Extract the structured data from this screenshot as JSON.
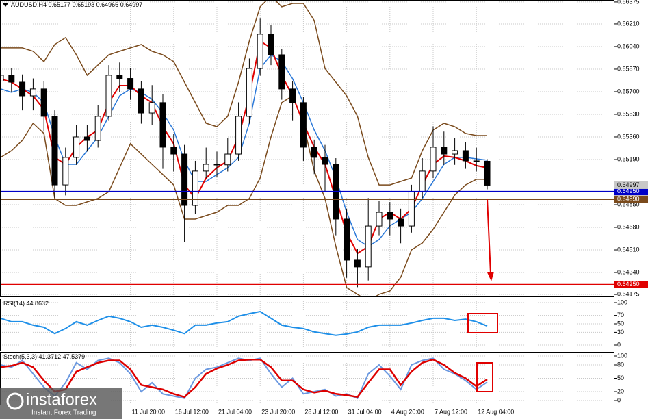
{
  "watermark": {
    "brand": "instaforex",
    "tagline": "Instant Forex Trading"
  },
  "chart_data": [
    {
      "type": "candlestick",
      "title": "AUDUSD,H4",
      "categories": [
        null,
        null,
        null,
        null,
        null,
        null,
        null,
        null,
        null,
        null,
        null,
        null,
        "11 Jul 20:00",
        null,
        null,
        null,
        "16 Jul 12:00",
        null,
        null,
        null,
        "21 Jul 04:00",
        null,
        null,
        null,
        "23 Jul 20:00",
        null,
        null,
        null,
        "28 Jul 12:00",
        null,
        null,
        null,
        "31 Jul 04:00",
        null,
        null,
        null,
        "4 Aug 20:00",
        null,
        null,
        null,
        "7 Aug 12:00",
        null,
        null,
        null,
        "12 Aug 04:00",
        null
      ],
      "open": [
        0.6578,
        0.65824,
        0.65772,
        0.65669,
        0.65721,
        0.65515,
        0.64999,
        0.65206,
        0.6536,
        0.65334,
        0.65515,
        0.65824,
        0.658,
        0.65721,
        0.6554,
        0.65618,
        0.65283,
        0.65231,
        0.64845,
        0.65103,
        0.65154,
        0.6515,
        0.65231,
        0.65515,
        0.65875,
        0.66133,
        0.65978,
        0.65721,
        0.65618,
        0.65283,
        0.65206,
        0.65154,
        0.64742,
        0.64433,
        0.64382,
        0.6469,
        0.64793,
        0.64742,
        0.6469,
        0.64948,
        0.65103,
        0.65283,
        0.65231,
        0.65257,
        0.6518,
        0.65177
      ],
      "high": [
        0.659,
        0.6588,
        0.6583,
        0.658,
        0.6578,
        0.6556,
        0.6528,
        0.6545,
        0.6545,
        0.656,
        0.659,
        0.6592,
        0.6588,
        0.6578,
        0.6575,
        0.6568,
        0.6538,
        0.653,
        0.6518,
        0.6528,
        0.6525,
        0.6535,
        0.6562,
        0.6595,
        0.6625,
        0.662,
        0.6602,
        0.6578,
        0.6566,
        0.6534,
        0.653,
        0.652,
        0.6482,
        0.6452,
        0.649,
        0.6488,
        0.6487,
        0.6482,
        0.65,
        0.652,
        0.6544,
        0.654,
        0.6535,
        0.6532,
        0.6528,
        0.65193
      ],
      "low": [
        0.657,
        0.657,
        0.6556,
        0.6556,
        0.654,
        0.649,
        0.6492,
        0.6515,
        0.6525,
        0.6528,
        0.6548,
        0.657,
        0.6564,
        0.6546,
        0.6545,
        0.6512,
        0.651,
        0.6457,
        0.6478,
        0.6505,
        0.6506,
        0.651,
        0.6518,
        0.6546,
        0.6582,
        0.659,
        0.6564,
        0.6548,
        0.6518,
        0.6508,
        0.6495,
        0.6462,
        0.643,
        0.6423,
        0.6428,
        0.6462,
        0.6462,
        0.6456,
        0.6464,
        0.649,
        0.6505,
        0.6515,
        0.6515,
        0.6512,
        0.651,
        0.64966
      ],
      "close": [
        0.65824,
        0.65772,
        0.65669,
        0.65721,
        0.65515,
        0.64999,
        0.65206,
        0.6536,
        0.65334,
        0.65515,
        0.65824,
        0.658,
        0.65721,
        0.6554,
        0.65618,
        0.65283,
        0.65231,
        0.64845,
        0.65103,
        0.65154,
        0.6515,
        0.65231,
        0.65515,
        0.65875,
        0.66133,
        0.65978,
        0.65721,
        0.65618,
        0.65283,
        0.65206,
        0.65154,
        0.64742,
        0.64433,
        0.64382,
        0.6469,
        0.64793,
        0.64742,
        0.6469,
        0.64948,
        0.65103,
        0.65283,
        0.65231,
        0.65257,
        0.6518,
        0.65177,
        0.64997
      ],
      "candle_color": "#000000",
      "overlays": [
        {
          "color": "#7a4a1c",
          "values": [
            0.6603,
            0.6603,
            0.6603,
            0.66004,
            0.65927,
            0.66055,
            0.66107,
            0.65978,
            0.65824,
            0.65901,
            0.65978,
            0.66004,
            0.6603,
            0.66055,
            0.66004,
            0.65978,
            0.65927,
            0.65772,
            0.65618,
            0.65463,
            0.65437,
            0.65515,
            0.65772,
            0.66081,
            0.66339,
            0.6642,
            0.66339,
            0.66364,
            0.66364,
            0.66236,
            0.65875,
            0.65772,
            0.65669,
            0.65515,
            0.65206,
            0.64999,
            0.64999,
            0.65025,
            0.65051,
            0.65257,
            0.65412,
            0.65463,
            0.65437,
            0.65386,
            0.6537,
            0.6537
          ]
        },
        {
          "color": "#7a4a1c",
          "values": [
            0.65206,
            0.65257,
            0.65334,
            0.65463,
            0.65386,
            0.64897,
            0.64845,
            0.64845,
            0.64871,
            0.64897,
            0.64948,
            0.65128,
            0.65309,
            0.65231,
            0.65154,
            0.65077,
            0.64999,
            0.64742,
            0.64742,
            0.64768,
            0.64794,
            0.64845,
            0.64845,
            0.64897,
            0.65051,
            0.6536,
            0.65618,
            0.65669,
            0.65463,
            0.65103,
            0.64897,
            0.64536,
            0.64227,
            0.64176,
            0.64124,
            0.64176,
            0.64201,
            0.64304,
            0.6451,
            0.64562,
            0.64665,
            0.64794,
            0.64922,
            0.64999,
            0.65041,
            0.65041
          ]
        },
        {
          "color": "#2a78d8",
          "values": [
            0.65721,
            0.65695,
            0.65721,
            0.65695,
            0.65618,
            0.6536,
            0.65154,
            0.65154,
            0.65257,
            0.6536,
            0.65515,
            0.65669,
            0.65721,
            0.65695,
            0.65643,
            0.6554,
            0.65412,
            0.6518,
            0.65025,
            0.65025,
            0.65077,
            0.65128,
            0.65206,
            0.65463,
            0.65875,
            0.65978,
            0.65927,
            0.65798,
            0.65618,
            0.65412,
            0.65257,
            0.65051,
            0.64794,
            0.64588,
            0.64536,
            0.64588,
            0.64691,
            0.64742,
            0.64794,
            0.64897,
            0.65025,
            0.65154,
            0.65206,
            0.65206,
            0.65195,
            0.65185
          ]
        },
        {
          "color": "#e00000",
          "values": [
            0.65798,
            0.65772,
            0.65721,
            0.65669,
            0.65566,
            0.65206,
            0.65154,
            0.65283,
            0.6536,
            0.65412,
            0.65618,
            0.65746,
            0.65746,
            0.65669,
            0.65618,
            0.65437,
            0.65309,
            0.64999,
            0.64897,
            0.65051,
            0.65128,
            0.6518,
            0.6536,
            0.65669,
            0.66081,
            0.6603,
            0.65824,
            0.65669,
            0.65463,
            0.65283,
            0.65154,
            0.64897,
            0.64639,
            0.64484,
            0.64536,
            0.64742,
            0.64794,
            0.64742,
            0.6482,
            0.64999,
            0.65154,
            0.65216,
            0.65206,
            0.6518,
            0.65144,
            0.65128
          ]
        }
      ],
      "levels": [
        {
          "value": 0.6495,
          "label": "0.64950",
          "color": "#0000c8"
        },
        {
          "value": 0.6489,
          "label": "0.64890",
          "color": "#7a4a1c"
        },
        {
          "value": 0.6425,
          "label": "0.64250",
          "color": "#e00000"
        }
      ],
      "current_color": "#c8c8c8",
      "ylim": [
        0.64165,
        0.6639
      ],
      "yticks": [
        0.66375,
        {
          "value": 0.6621,
          "label": "0.66210"
        },
        {
          "value": 0.6604,
          "label": "0.66040"
        },
        {
          "value": 0.6587,
          "label": "0.65870"
        },
        {
          "value": 0.657,
          "label": "0.65700"
        },
        {
          "value": 0.6553,
          "label": "0.65530"
        },
        {
          "value": 0.6536,
          "label": "0.65360"
        },
        {
          "value": 0.6519,
          "label": "0.65190"
        },
        {
          "value": 0.6485,
          "label": "0.64850"
        },
        {
          "value": 0.6468,
          "label": "0.64680"
        },
        {
          "value": 0.6451,
          "label": "0.64510"
        },
        {
          "value": 0.6434,
          "label": "0.64340"
        },
        0.64175
      ],
      "grid": true
    },
    {
      "type": "line",
      "title": "RSI(14)",
      "color": "#1e8fe8",
      "values": [
        63,
        55,
        55,
        47,
        42,
        27,
        39,
        55,
        47,
        58,
        68,
        63,
        55,
        42,
        47,
        42,
        35,
        27,
        47,
        47,
        52,
        55,
        68,
        74,
        79,
        63,
        47,
        42,
        39,
        31,
        27,
        23,
        26,
        31,
        42,
        47,
        47,
        47,
        52,
        58,
        63,
        63,
        58,
        61,
        55,
        44.8632
      ],
      "ylim": [
        0,
        100
      ],
      "yticks": [
        100,
        70,
        50,
        30,
        0
      ],
      "grid": true
    },
    {
      "type": "line",
      "title": "Stoch(5,3,3)",
      "series": [
        {
          "color": "#6a98e0",
          "values": [
            80,
            75,
            90,
            60,
            30,
            10,
            40,
            85,
            70,
            90,
            95,
            85,
            60,
            20,
            40,
            15,
            10,
            5,
            50,
            70,
            75,
            85,
            95,
            90,
            95,
            60,
            30,
            50,
            15,
            20,
            25,
            10,
            15,
            5,
            60,
            80,
            55,
            25,
            80,
            90,
            95,
            70,
            60,
            45,
            25,
            41.3712
          ]
        },
        {
          "color": "#dd0000",
          "values": [
            75,
            78,
            85,
            75,
            45,
            20,
            25,
            65,
            75,
            85,
            90,
            90,
            70,
            35,
            30,
            25,
            15,
            8,
            30,
            60,
            72,
            80,
            90,
            92,
            92,
            75,
            45,
            45,
            25,
            18,
            22,
            15,
            12,
            8,
            40,
            70,
            70,
            35,
            65,
            85,
            92,
            80,
            62,
            50,
            32,
            47.5379
          ]
        }
      ],
      "ylim": [
        0,
        100
      ],
      "yticks": [
        100,
        80,
        50,
        20,
        0
      ],
      "grid": true
    }
  ]
}
